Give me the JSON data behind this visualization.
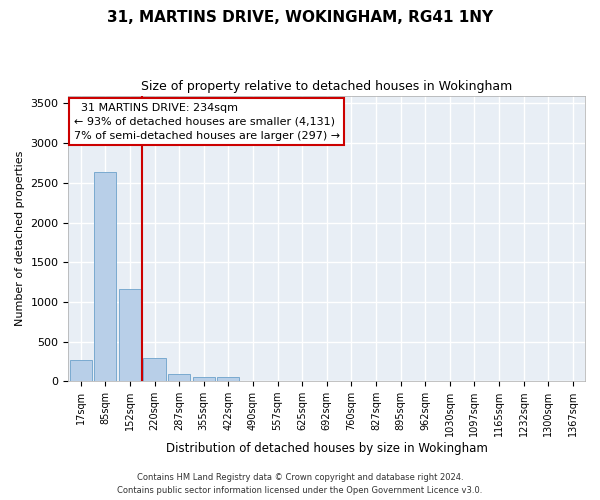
{
  "title": "31, MARTINS DRIVE, WOKINGHAM, RG41 1NY",
  "subtitle": "Size of property relative to detached houses in Wokingham",
  "xlabel": "Distribution of detached houses by size in Wokingham",
  "ylabel": "Number of detached properties",
  "categories": [
    "17sqm",
    "85sqm",
    "152sqm",
    "220sqm",
    "287sqm",
    "355sqm",
    "422sqm",
    "490sqm",
    "557sqm",
    "625sqm",
    "692sqm",
    "760sqm",
    "827sqm",
    "895sqm",
    "962sqm",
    "1030sqm",
    "1097sqm",
    "1165sqm",
    "1232sqm",
    "1300sqm",
    "1367sqm"
  ],
  "bar_heights": [
    270,
    2640,
    1160,
    290,
    95,
    50,
    50,
    0,
    0,
    0,
    0,
    0,
    0,
    0,
    0,
    0,
    0,
    0,
    0,
    0,
    0
  ],
  "bar_color": "#b8cfe8",
  "bar_edge_color": "#7aaad0",
  "ylim": [
    0,
    3600
  ],
  "yticks": [
    0,
    500,
    1000,
    1500,
    2000,
    2500,
    3000,
    3500
  ],
  "property_line_color": "#cc0000",
  "annotation_text": "  31 MARTINS DRIVE: 234sqm\n← 93% of detached houses are smaller (4,131)\n7% of semi-detached houses are larger (297) →",
  "annotation_box_color": "#cc0000",
  "background_color": "#e8eef5",
  "grid_color": "#ffffff",
  "footer_line1": "Contains HM Land Registry data © Crown copyright and database right 2024.",
  "footer_line2": "Contains public sector information licensed under the Open Government Licence v3.0."
}
